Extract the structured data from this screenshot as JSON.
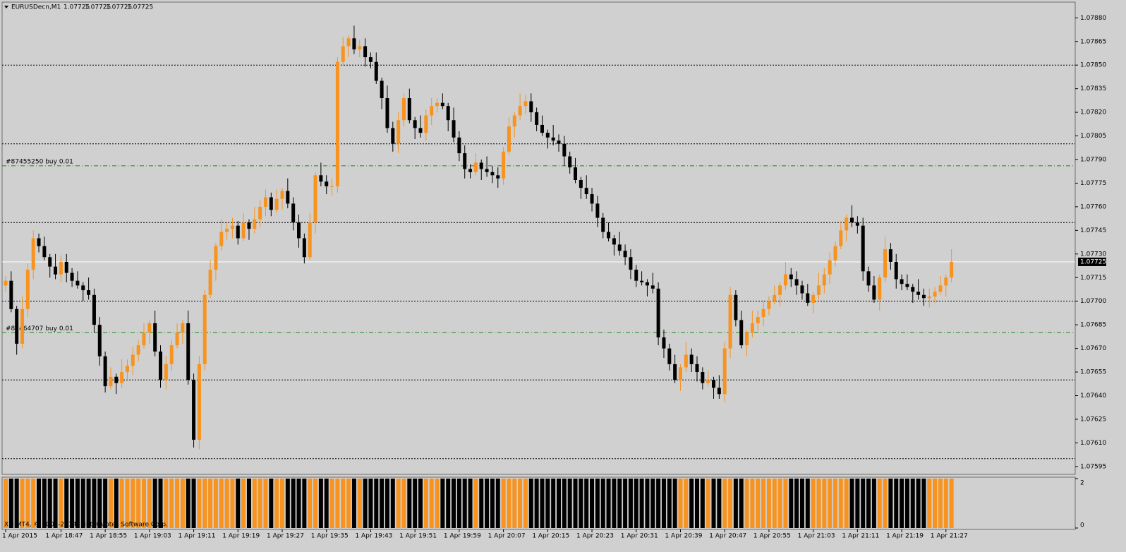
{
  "chart_data": {
    "type": "candlestick",
    "symbol": "EURUSDecn,M1",
    "header_quotes": [
      1.07725,
      1.07725,
      1.07725,
      1.07725
    ],
    "categories": [
      "1 Apr 2015",
      null,
      null,
      null,
      null,
      null,
      null,
      null,
      null,
      null,
      "1 Apr 18:47",
      null,
      null,
      null,
      null,
      null,
      null,
      null,
      "1 Apr 18:55",
      null,
      null,
      null,
      null,
      null,
      null,
      null,
      "1 Apr 19:03",
      null,
      null,
      null,
      null,
      null,
      null,
      null,
      "1 Apr 19:11",
      null,
      null,
      null,
      null,
      null,
      null,
      null,
      "1 Apr 19:19",
      null,
      null,
      null,
      null,
      null,
      null,
      null,
      "1 Apr 19:27",
      null,
      null,
      null,
      null,
      null,
      null,
      null,
      "1 Apr 19:35",
      null,
      null,
      null,
      null,
      null,
      null,
      null,
      "1 Apr 19:43",
      null,
      null,
      null,
      null,
      null,
      null,
      null,
      "1 Apr 19:51",
      null,
      null,
      null,
      null,
      null,
      null,
      null,
      "1 Apr 19:59",
      null,
      null,
      null,
      null,
      null,
      null,
      null,
      "1 Apr 20:07",
      null,
      null,
      null,
      null,
      null,
      null,
      null,
      "1 Apr 20:15",
      null,
      null,
      null,
      null,
      null,
      null,
      null,
      "1 Apr 20:23",
      null,
      null,
      null,
      null,
      null,
      null,
      null,
      "1 Apr 20:31",
      null,
      null,
      null,
      null,
      null,
      null,
      null,
      "1 Apr 20:39",
      null,
      null,
      null,
      null,
      null,
      null,
      null,
      "1 Apr 20:47",
      null,
      null,
      null,
      null,
      null,
      null,
      null,
      "1 Apr 20:55",
      null,
      null,
      null,
      null,
      null,
      null,
      null,
      "1 Apr 21:03",
      null,
      null,
      null,
      null,
      null,
      null,
      null,
      "1 Apr 21:11",
      null,
      null,
      null,
      null,
      null,
      null,
      null,
      "1 Apr 21:19",
      null,
      null,
      null,
      null,
      null,
      null,
      null,
      "1 Apr 21:27",
      null
    ],
    "open": [
      1.0771,
      1.07713,
      1.07695,
      1.07673,
      1.07695,
      1.0772,
      1.0774,
      1.07735,
      1.07728,
      1.07722,
      1.07717,
      1.07725,
      1.07718,
      1.07713,
      1.0771,
      1.07707,
      1.07704,
      1.07685,
      1.07665,
      1.07646,
      1.07652,
      1.07648,
      1.07655,
      1.07659,
      1.07666,
      1.07672,
      1.0768,
      1.07686,
      1.07668,
      1.0765,
      1.0766,
      1.07672,
      1.0768,
      1.07686,
      1.0765,
      1.07612,
      1.0766,
      1.07704,
      1.0772,
      1.07735,
      1.07744,
      1.07746,
      1.07748,
      1.0774,
      1.0775,
      1.07746,
      1.07752,
      1.0776,
      1.07766,
      1.07758,
      1.07765,
      1.0777,
      1.07762,
      1.0775,
      1.0774,
      1.07728,
      1.0775,
      1.0778,
      1.07776,
      1.07773,
      1.07773,
      1.07852,
      1.07862,
      1.07867,
      1.0786,
      1.07862,
      1.07855,
      1.07852,
      1.0784,
      1.07829,
      1.0781,
      1.078,
      1.07815,
      1.07829,
      1.07815,
      1.0781,
      1.07807,
      1.07818,
      1.07824,
      1.07826,
      1.07824,
      1.07815,
      1.07804,
      1.07794,
      1.07784,
      1.07782,
      1.07788,
      1.07784,
      1.07782,
      1.0778,
      1.07778,
      1.07795,
      1.07811,
      1.07818,
      1.07824,
      1.07827,
      1.0782,
      1.07812,
      1.07807,
      1.07804,
      1.07802,
      1.078,
      1.07792,
      1.07785,
      1.07777,
      1.07772,
      1.07768,
      1.07762,
      1.07753,
      1.07744,
      1.0774,
      1.07736,
      1.07732,
      1.07728,
      1.0772,
      1.07713,
      1.07712,
      1.0771,
      1.07708,
      1.07677,
      1.0767,
      1.0766,
      1.0765,
      1.07658,
      1.07666,
      1.0766,
      1.07655,
      1.07648,
      1.0765,
      1.07645,
      1.07641,
      1.0767,
      1.07704,
      1.07688,
      1.07672,
      1.0768,
      1.07686,
      1.0769,
      1.07695,
      1.077,
      1.07704,
      1.0771,
      1.07717,
      1.07714,
      1.0771,
      1.07705,
      1.07699,
      1.07704,
      1.0771,
      1.07717,
      1.07726,
      1.07735,
      1.07745,
      1.07753,
      1.0775,
      1.07748,
      1.07719,
      1.0771,
      1.07701,
      1.07715,
      1.07733,
      1.07725,
      1.07714,
      1.07711,
      1.07709,
      1.07706,
      1.07704,
      1.07702,
      1.07703,
      1.07706,
      1.0771,
      1.07715
    ],
    "high": [
      1.07716,
      1.07719,
      1.07697,
      1.07703,
      1.07724,
      1.07745,
      1.07743,
      1.07741,
      1.0773,
      1.0773,
      1.07729,
      1.0773,
      1.07721,
      1.07719,
      1.07712,
      1.07715,
      1.07708,
      1.0769,
      1.07668,
      1.07658,
      1.07654,
      1.07663,
      1.07663,
      1.07671,
      1.07675,
      1.07686,
      1.07688,
      1.07694,
      1.07672,
      1.07665,
      1.07675,
      1.07686,
      1.07688,
      1.07694,
      1.07654,
      1.07665,
      1.07707,
      1.07726,
      1.07737,
      1.07752,
      1.0775,
      1.07753,
      1.07751,
      1.07756,
      1.07752,
      1.0776,
      1.07764,
      1.07771,
      1.07769,
      1.07771,
      1.07772,
      1.07778,
      1.07766,
      1.07755,
      1.07743,
      1.07756,
      1.07782,
      1.07788,
      1.0778,
      1.07778,
      1.07855,
      1.07868,
      1.07869,
      1.07875,
      1.07866,
      1.07867,
      1.07858,
      1.07858,
      1.07842,
      1.07837,
      1.07814,
      1.0782,
      1.07832,
      1.07835,
      1.07817,
      1.07818,
      1.07822,
      1.07829,
      1.07829,
      1.07832,
      1.07826,
      1.07823,
      1.07808,
      1.07799,
      1.07787,
      1.07794,
      1.0779,
      1.07792,
      1.07786,
      1.07785,
      1.07798,
      1.07817,
      1.0782,
      1.07832,
      1.07831,
      1.07832,
      1.07823,
      1.07818,
      1.07809,
      1.07812,
      1.07806,
      1.07805,
      1.07795,
      1.07791,
      1.07779,
      1.0778,
      1.07772,
      1.07767,
      1.07756,
      1.0775,
      1.07742,
      1.07744,
      1.07736,
      1.07733,
      1.07723,
      1.07719,
      1.07714,
      1.07718,
      1.07712,
      1.07682,
      1.07673,
      1.07666,
      1.0766,
      1.07674,
      1.0767,
      1.07665,
      1.07658,
      1.07656,
      1.07652,
      1.07653,
      1.07674,
      1.07709,
      1.07707,
      1.07694,
      1.07682,
      1.07694,
      1.07694,
      1.077,
      1.07703,
      1.0771,
      1.07712,
      1.07725,
      1.07721,
      1.07719,
      1.07713,
      1.07711,
      1.07706,
      1.07718,
      1.07721,
      1.07731,
      1.07738,
      1.07751,
      1.07755,
      1.07761,
      1.07754,
      1.07753,
      1.07722,
      1.07716,
      1.07717,
      1.07741,
      1.07737,
      1.0773,
      1.07717,
      1.07717,
      1.07711,
      1.07714,
      1.07708,
      1.07708,
      1.07709,
      1.07716,
      1.07717,
      1.07733
    ],
    "low": [
      1.07706,
      1.07693,
      1.07666,
      1.0767,
      1.0769,
      1.07714,
      1.07731,
      1.07726,
      1.07715,
      1.07714,
      1.07712,
      1.07712,
      1.07709,
      1.07708,
      1.077,
      1.07701,
      1.0768,
      1.07659,
      1.07642,
      1.07644,
      1.07641,
      1.07645,
      1.0765,
      1.07653,
      1.07662,
      1.0767,
      1.07673,
      1.07665,
      1.07645,
      1.07644,
      1.07656,
      1.0767,
      1.07673,
      1.07647,
      1.07607,
      1.07606,
      1.07656,
      1.07702,
      1.07713,
      1.07732,
      1.07739,
      1.0774,
      1.07736,
      1.07738,
      1.07739,
      1.07743,
      1.07747,
      1.07754,
      1.07754,
      1.07756,
      1.07758,
      1.07759,
      1.07745,
      1.07734,
      1.07724,
      1.07726,
      1.07743,
      1.07773,
      1.07768,
      1.07767,
      1.07769,
      1.0785,
      1.07855,
      1.07857,
      1.07855,
      1.07849,
      1.07848,
      1.07838,
      1.07822,
      1.07807,
      1.07795,
      1.07794,
      1.07811,
      1.07813,
      1.07803,
      1.07804,
      1.07802,
      1.07812,
      1.0782,
      1.07822,
      1.07808,
      1.07801,
      1.07789,
      1.07778,
      1.07778,
      1.0778,
      1.07777,
      1.07779,
      1.07775,
      1.07772,
      1.07774,
      1.07793,
      1.07804,
      1.07815,
      1.07819,
      1.07814,
      1.07808,
      1.07805,
      1.07797,
      1.07799,
      1.07795,
      1.07786,
      1.07781,
      1.07775,
      1.07765,
      1.07765,
      1.07757,
      1.07747,
      1.0774,
      1.07738,
      1.07729,
      1.07729,
      1.07723,
      1.07714,
      1.07709,
      1.0771,
      1.07703,
      1.07705,
      1.07672,
      1.07664,
      1.07656,
      1.07648,
      1.07643,
      1.07655,
      1.07655,
      1.07649,
      1.07644,
      1.07646,
      1.07638,
      1.07638,
      1.07636,
      1.07664,
      1.07684,
      1.0767,
      1.07665,
      1.07677,
      1.07681,
      1.07684,
      1.07691,
      1.07698,
      1.07697,
      1.07707,
      1.07709,
      1.07704,
      1.07701,
      1.07697,
      1.07692,
      1.07701,
      1.07705,
      1.07711,
      1.07722,
      1.07733,
      1.07738,
      1.07747,
      1.07743,
      1.07713,
      1.07706,
      1.07699,
      1.07694,
      1.07712,
      1.0772,
      1.07708,
      1.07707,
      1.07707,
      1.07699,
      1.07701,
      1.07697,
      1.07696,
      1.07699,
      1.07704,
      1.07703,
      1.07712
    ],
    "close": [
      1.07713,
      1.07695,
      1.07673,
      1.07695,
      1.0772,
      1.0774,
      1.07735,
      1.07728,
      1.07722,
      1.07717,
      1.07725,
      1.07718,
      1.07713,
      1.0771,
      1.07707,
      1.07704,
      1.07685,
      1.07665,
      1.07646,
      1.07652,
      1.07648,
      1.07655,
      1.07659,
      1.07666,
      1.07672,
      1.0768,
      1.07686,
      1.07668,
      1.0765,
      1.0766,
      1.07672,
      1.0768,
      1.07686,
      1.0765,
      1.07612,
      1.0766,
      1.07704,
      1.0772,
      1.07735,
      1.07744,
      1.07746,
      1.07748,
      1.0774,
      1.0775,
      1.07746,
      1.07752,
      1.0776,
      1.07766,
      1.07758,
      1.07765,
      1.0777,
      1.07762,
      1.0775,
      1.0774,
      1.07728,
      1.0775,
      1.0778,
      1.07776,
      1.07773,
      1.07773,
      1.07852,
      1.07862,
      1.07867,
      1.0786,
      1.07862,
      1.07855,
      1.07852,
      1.0784,
      1.07829,
      1.0781,
      1.078,
      1.07815,
      1.07829,
      1.07815,
      1.0781,
      1.07807,
      1.07818,
      1.07824,
      1.07826,
      1.07824,
      1.07815,
      1.07804,
      1.07794,
      1.07784,
      1.07782,
      1.07788,
      1.07784,
      1.07782,
      1.0778,
      1.07778,
      1.07795,
      1.07811,
      1.07818,
      1.07824,
      1.07827,
      1.0782,
      1.07812,
      1.07807,
      1.07804,
      1.07802,
      1.078,
      1.07792,
      1.07785,
      1.07777,
      1.07772,
      1.07768,
      1.07762,
      1.07753,
      1.07744,
      1.0774,
      1.07736,
      1.07732,
      1.07728,
      1.0772,
      1.07713,
      1.07712,
      1.0771,
      1.07708,
      1.07677,
      1.0767,
      1.0766,
      1.0765,
      1.07658,
      1.07666,
      1.0766,
      1.07655,
      1.07648,
      1.0765,
      1.07645,
      1.07641,
      1.0767,
      1.07704,
      1.07688,
      1.07672,
      1.0768,
      1.07686,
      1.0769,
      1.07695,
      1.077,
      1.07704,
      1.0771,
      1.07717,
      1.07714,
      1.0771,
      1.07705,
      1.07699,
      1.07704,
      1.0771,
      1.07717,
      1.07726,
      1.07735,
      1.07745,
      1.07753,
      1.0775,
      1.07748,
      1.07719,
      1.0771,
      1.07701,
      1.07715,
      1.07733,
      1.07725,
      1.07714,
      1.07711,
      1.07709,
      1.07706,
      1.07704,
      1.07702,
      1.07703,
      1.07706,
      1.0771,
      1.07715,
      1.07725
    ],
    "up_color": "#f7931e",
    "down_color": "#000000",
    "ylim": [
      1.0759,
      1.0789
    ],
    "yticks": [
      1.07595,
      {
        "value": 1.0761,
        "label": "1.07610"
      },
      1.07625,
      {
        "value": 1.0764,
        "label": "1.07640"
      },
      1.07655,
      {
        "value": 1.0767,
        "label": "1.07670"
      },
      1.07685,
      {
        "value": 1.077,
        "label": "1.07700"
      },
      1.07715,
      {
        "value": 1.0773,
        "label": "1.07730"
      },
      1.07745,
      {
        "value": 1.0776,
        "label": "1.07760"
      },
      1.07775,
      {
        "value": 1.0779,
        "label": "1.07790"
      },
      1.07805,
      {
        "value": 1.0782,
        "label": "1.07820"
      },
      1.07835,
      {
        "value": 1.0785,
        "label": "1.07850"
      },
      1.07865,
      {
        "value": 1.0788,
        "label": "1.07880"
      }
    ],
    "grid_values": [
      1.076,
      1.0765,
      1.077,
      1.0775,
      1.078,
      1.0785
    ],
    "current_price": 1.07725,
    "orders": [
      {
        "label": "#87455250 buy 0.01",
        "price": 1.07786
      },
      {
        "label": "#87464707 buy 0.01",
        "price": 1.0768
      }
    ],
    "indicator": {
      "ylim": [
        0,
        2
      ],
      "yticks": [
        2,
        0
      ],
      "values": [
        2,
        2,
        2,
        2,
        2,
        2,
        2,
        2,
        2,
        2,
        2,
        2,
        2,
        2,
        2,
        2,
        2,
        2,
        2,
        2,
        2,
        2,
        2,
        2,
        2,
        2,
        2,
        2,
        2,
        2,
        2,
        2,
        2,
        2,
        2,
        2,
        2,
        2,
        2,
        2,
        2,
        2,
        2,
        2,
        2,
        2,
        2,
        2,
        2,
        2,
        2,
        2,
        2,
        2,
        2,
        2,
        2,
        2,
        2,
        2,
        2,
        2,
        2,
        2,
        2,
        2,
        2,
        2,
        2,
        2,
        2,
        2,
        2,
        2,
        2,
        2,
        2,
        2,
        2,
        2,
        2,
        2,
        2,
        2,
        2,
        2,
        2,
        2,
        2,
        2,
        2,
        2,
        2,
        2,
        2,
        2,
        2,
        2,
        2,
        2,
        2,
        2,
        2,
        2,
        2,
        2,
        2,
        2,
        2,
        2,
        2,
        2,
        2,
        2,
        2,
        2,
        2,
        2,
        2,
        2,
        2,
        2,
        2,
        2,
        2,
        2,
        2,
        2,
        2,
        2,
        2,
        2,
        2,
        2,
        2,
        2,
        2,
        2,
        2,
        2,
        2,
        2,
        2,
        2,
        2,
        2,
        2,
        2,
        2,
        2,
        2,
        2,
        2,
        2,
        2,
        2,
        2,
        2,
        2,
        2,
        2,
        2,
        2,
        2,
        2,
        2,
        2,
        2,
        2,
        2,
        2,
        2
      ]
    },
    "copyright": "XM MT4, © 2001-2014, MetaQuotes Software Corp."
  }
}
